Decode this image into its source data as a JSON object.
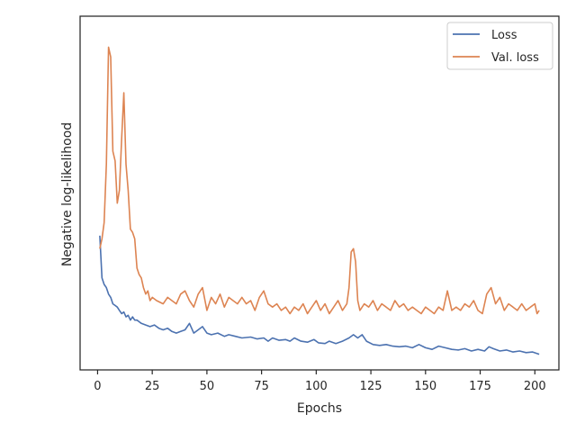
{
  "chart_data": {
    "type": "line",
    "title": "",
    "xlabel": "Epochs",
    "ylabel": "Negative log-likelihood",
    "xlim": [
      -8,
      211
    ],
    "ylim": [
      0,
      100
    ],
    "xticks": [
      0,
      25,
      50,
      75,
      100,
      125,
      150,
      175,
      200
    ],
    "yticks_shown": false,
    "grid": false,
    "legend_position": "top-right",
    "series": [
      {
        "name": "Loss",
        "color": "#4c72b0",
        "points": [
          [
            1,
            38
          ],
          [
            2,
            25
          ],
          [
            3,
            23
          ],
          [
            4,
            22
          ],
          [
            5,
            20
          ],
          [
            6,
            19
          ],
          [
            7,
            17
          ],
          [
            8,
            16.5
          ],
          [
            9,
            16
          ],
          [
            10,
            15
          ],
          [
            11,
            14
          ],
          [
            12,
            14.5
          ],
          [
            13,
            13
          ],
          [
            14,
            13.5
          ],
          [
            15,
            12
          ],
          [
            16,
            13
          ],
          [
            17,
            12
          ],
          [
            18,
            12
          ],
          [
            19,
            11.5
          ],
          [
            20,
            11
          ],
          [
            22,
            10.5
          ],
          [
            24,
            10
          ],
          [
            26,
            10.5
          ],
          [
            28,
            9.5
          ],
          [
            30,
            9
          ],
          [
            32,
            9.5
          ],
          [
            34,
            8.5
          ],
          [
            36,
            8
          ],
          [
            38,
            8.5
          ],
          [
            40,
            9
          ],
          [
            42,
            11
          ],
          [
            44,
            8
          ],
          [
            46,
            9
          ],
          [
            48,
            10
          ],
          [
            50,
            8
          ],
          [
            52,
            7.5
          ],
          [
            55,
            8
          ],
          [
            58,
            7
          ],
          [
            60,
            7.5
          ],
          [
            63,
            7
          ],
          [
            66,
            6.5
          ],
          [
            70,
            6.8
          ],
          [
            73,
            6.2
          ],
          [
            76,
            6.5
          ],
          [
            78,
            5.5
          ],
          [
            80,
            6.5
          ],
          [
            83,
            5.8
          ],
          [
            86,
            6
          ],
          [
            88,
            5.5
          ],
          [
            90,
            6.5
          ],
          [
            93,
            5.5
          ],
          [
            96,
            5.2
          ],
          [
            99,
            6
          ],
          [
            101,
            5
          ],
          [
            104,
            4.8
          ],
          [
            106,
            5.5
          ],
          [
            109,
            4.8
          ],
          [
            112,
            5.5
          ],
          [
            115,
            6.5
          ],
          [
            117,
            7.5
          ],
          [
            119,
            6.5
          ],
          [
            121,
            7.5
          ],
          [
            123,
            5.5
          ],
          [
            126,
            4.5
          ],
          [
            129,
            4.2
          ],
          [
            132,
            4.5
          ],
          [
            135,
            4
          ],
          [
            138,
            3.8
          ],
          [
            141,
            4
          ],
          [
            144,
            3.5
          ],
          [
            147,
            4.5
          ],
          [
            150,
            3.5
          ],
          [
            153,
            3
          ],
          [
            156,
            4
          ],
          [
            159,
            3.5
          ],
          [
            162,
            3
          ],
          [
            165,
            2.8
          ],
          [
            168,
            3.2
          ],
          [
            171,
            2.5
          ],
          [
            174,
            3
          ],
          [
            177,
            2.5
          ],
          [
            179,
            3.8
          ],
          [
            181,
            3.2
          ],
          [
            184,
            2.5
          ],
          [
            187,
            2.8
          ],
          [
            190,
            2.2
          ],
          [
            193,
            2.5
          ],
          [
            196,
            2
          ],
          [
            199,
            2.2
          ],
          [
            202,
            1.5
          ]
        ]
      },
      {
        "name": "Val. loss",
        "color": "#dd8452",
        "points": [
          [
            1,
            34
          ],
          [
            2,
            37
          ],
          [
            3,
            42
          ],
          [
            4,
            60
          ],
          [
            5,
            96
          ],
          [
            6,
            93
          ],
          [
            7,
            64
          ],
          [
            8,
            61
          ],
          [
            9,
            48
          ],
          [
            10,
            52
          ],
          [
            11,
            68
          ],
          [
            12,
            82
          ],
          [
            13,
            60
          ],
          [
            14,
            52
          ],
          [
            15,
            40
          ],
          [
            16,
            39
          ],
          [
            17,
            37
          ],
          [
            18,
            28
          ],
          [
            19,
            26
          ],
          [
            20,
            25
          ],
          [
            21,
            22
          ],
          [
            22,
            20
          ],
          [
            23,
            21
          ],
          [
            24,
            18
          ],
          [
            25,
            19
          ],
          [
            27,
            18
          ],
          [
            30,
            17
          ],
          [
            32,
            19
          ],
          [
            34,
            18
          ],
          [
            36,
            17
          ],
          [
            38,
            20
          ],
          [
            40,
            21
          ],
          [
            42,
            18
          ],
          [
            44,
            16
          ],
          [
            46,
            20
          ],
          [
            48,
            22
          ],
          [
            50,
            15
          ],
          [
            52,
            19
          ],
          [
            54,
            17
          ],
          [
            56,
            20
          ],
          [
            58,
            16
          ],
          [
            60,
            19
          ],
          [
            62,
            18
          ],
          [
            64,
            17
          ],
          [
            66,
            19
          ],
          [
            68,
            17
          ],
          [
            70,
            18
          ],
          [
            72,
            15
          ],
          [
            74,
            19
          ],
          [
            76,
            21
          ],
          [
            78,
            17
          ],
          [
            80,
            16
          ],
          [
            82,
            17
          ],
          [
            84,
            15
          ],
          [
            86,
            16
          ],
          [
            88,
            14
          ],
          [
            90,
            16
          ],
          [
            92,
            15
          ],
          [
            94,
            17
          ],
          [
            96,
            14
          ],
          [
            98,
            16
          ],
          [
            100,
            18
          ],
          [
            102,
            15
          ],
          [
            104,
            17
          ],
          [
            106,
            14
          ],
          [
            108,
            16
          ],
          [
            110,
            18
          ],
          [
            112,
            15
          ],
          [
            114,
            17
          ],
          [
            115,
            22
          ],
          [
            116,
            33
          ],
          [
            117,
            34
          ],
          [
            118,
            30
          ],
          [
            119,
            18
          ],
          [
            120,
            15
          ],
          [
            122,
            17
          ],
          [
            124,
            16
          ],
          [
            126,
            18
          ],
          [
            128,
            15
          ],
          [
            130,
            17
          ],
          [
            132,
            16
          ],
          [
            134,
            15
          ],
          [
            136,
            18
          ],
          [
            138,
            16
          ],
          [
            140,
            17
          ],
          [
            142,
            15
          ],
          [
            144,
            16
          ],
          [
            146,
            15
          ],
          [
            148,
            14
          ],
          [
            150,
            16
          ],
          [
            152,
            15
          ],
          [
            154,
            14
          ],
          [
            156,
            16
          ],
          [
            158,
            15
          ],
          [
            160,
            21
          ],
          [
            162,
            15
          ],
          [
            164,
            16
          ],
          [
            166,
            15
          ],
          [
            168,
            17
          ],
          [
            170,
            16
          ],
          [
            172,
            18
          ],
          [
            174,
            15
          ],
          [
            176,
            14
          ],
          [
            178,
            20
          ],
          [
            180,
            22
          ],
          [
            182,
            17
          ],
          [
            184,
            19
          ],
          [
            186,
            15
          ],
          [
            188,
            17
          ],
          [
            190,
            16
          ],
          [
            192,
            15
          ],
          [
            194,
            17
          ],
          [
            196,
            15
          ],
          [
            198,
            16
          ],
          [
            200,
            17
          ],
          [
            201,
            14
          ],
          [
            202,
            15
          ]
        ]
      }
    ]
  }
}
